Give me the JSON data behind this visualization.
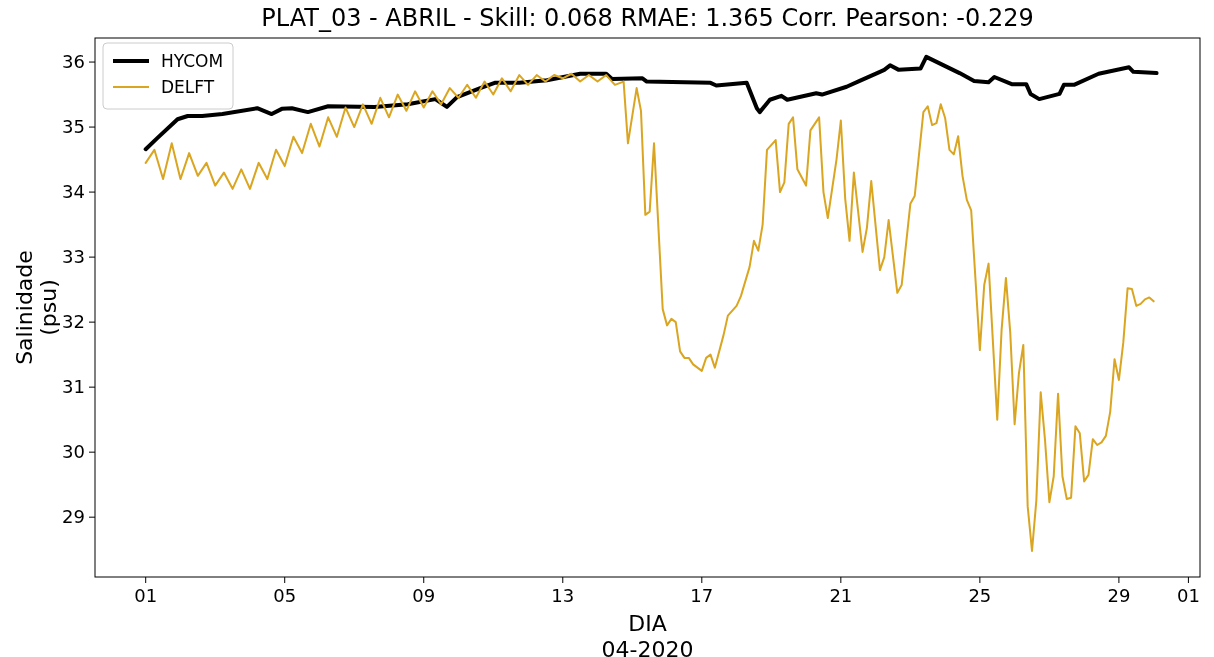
{
  "chart_data": {
    "type": "line",
    "title": "PLAT_03 - ABRIL - Skill: 0.068 RMAE: 1.365 Corr. Pearson: -0.229",
    "xlabel": "DIA\n04-2020",
    "ylabel": "Salinidade\n(psu)",
    "xlim": [
      "2020-03-30T13:00",
      "2020-05-01T08:00"
    ],
    "ylim": [
      28.08,
      36.37
    ],
    "xticks": [
      {
        "value": "2020-04-01",
        "label": "01"
      },
      {
        "value": "2020-04-05",
        "label": "05"
      },
      {
        "value": "2020-04-09",
        "label": "09"
      },
      {
        "value": "2020-04-13",
        "label": "13"
      },
      {
        "value": "2020-04-17",
        "label": "17"
      },
      {
        "value": "2020-04-21",
        "label": "21"
      },
      {
        "value": "2020-04-25",
        "label": "25"
      },
      {
        "value": "2020-04-29",
        "label": "29"
      },
      {
        "value": "2020-05-01",
        "label": "01"
      }
    ],
    "yticks": [
      29,
      30,
      31,
      32,
      33,
      34,
      35,
      36
    ],
    "grid": false,
    "legend": "top left",
    "line_style": "solid",
    "marker": "none",
    "series": [
      {
        "name": "HYCOM",
        "color": "#000000",
        "x": [
          "2020-04-01T00:00",
          "2020-04-01T08:00",
          "2020-04-01T22:00",
          "2020-04-02T05:00",
          "2020-04-02T15:00",
          "2020-04-03T05:00",
          "2020-04-04T05:00",
          "2020-04-04T15:00",
          "2020-04-04T22:00",
          "2020-04-05T05:00",
          "2020-04-05T16:00",
          "2020-04-06T06:00",
          "2020-04-07T14:00",
          "2020-04-08T13:00",
          "2020-04-09T08:00",
          "2020-04-09T16:00",
          "2020-04-09T23:00",
          "2020-04-10T15:00",
          "2020-04-11T01:00",
          "2020-04-11T18:00",
          "2020-04-12T13:00",
          "2020-04-13T12:00",
          "2020-04-14T06:00",
          "2020-04-14T10:00",
          "2020-04-15T07:00",
          "2020-04-15T10:00",
          "2020-04-17T06:00",
          "2020-04-17T10:00",
          "2020-04-18T07:00",
          "2020-04-18T14:00",
          "2020-04-18T16:00",
          "2020-04-18T23:00",
          "2020-04-19T07:00",
          "2020-04-19T11:00",
          "2020-04-20T07:00",
          "2020-04-20T11:00",
          "2020-04-21T04:00",
          "2020-04-21T13:00",
          "2020-04-22T03:00",
          "2020-04-22T06:00",
          "2020-04-22T10:00",
          "2020-04-22T16:00",
          "2020-04-23T07:00",
          "2020-04-23T11:00",
          "2020-04-24T10:00",
          "2020-04-24T20:00",
          "2020-04-25T06:00",
          "2020-04-25T10:00",
          "2020-04-25T22:00",
          "2020-04-26T08:00",
          "2020-04-26T11:00",
          "2020-04-26T17:00",
          "2020-04-27T07:00",
          "2020-04-27T10:00",
          "2020-04-27T17:00",
          "2020-04-28T10:00",
          "2020-04-29T07:00",
          "2020-04-29T10:00",
          "2020-04-30T02:00"
        ],
        "values": [
          34.66,
          34.83,
          35.12,
          35.17,
          35.17,
          35.2,
          35.29,
          35.2,
          35.28,
          35.29,
          35.23,
          35.32,
          35.31,
          35.35,
          35.43,
          35.31,
          35.46,
          35.6,
          35.68,
          35.68,
          35.72,
          35.82,
          35.82,
          35.74,
          35.75,
          35.7,
          35.68,
          35.64,
          35.68,
          35.29,
          35.23,
          35.42,
          35.48,
          35.42,
          35.52,
          35.5,
          35.62,
          35.71,
          35.85,
          35.88,
          35.95,
          35.88,
          35.9,
          36.08,
          35.83,
          35.71,
          35.69,
          35.77,
          35.66,
          35.66,
          35.51,
          35.43,
          35.51,
          35.65,
          35.65,
          35.82,
          35.92,
          35.85,
          35.83
        ]
      },
      {
        "name": "DELFT",
        "color": "#daa520",
        "x": [
          "2020-04-01T00:00",
          "2020-04-01T06:00",
          "2020-04-01T12:00",
          "2020-04-01T18:00",
          "2020-04-02T00:00",
          "2020-04-02T06:00",
          "2020-04-02T12:00",
          "2020-04-02T18:00",
          "2020-04-03T00:00",
          "2020-04-03T06:00",
          "2020-04-03T12:00",
          "2020-04-03T18:00",
          "2020-04-04T00:00",
          "2020-04-04T06:00",
          "2020-04-04T12:00",
          "2020-04-04T18:00",
          "2020-04-05T00:00",
          "2020-04-05T06:00",
          "2020-04-05T12:00",
          "2020-04-05T18:00",
          "2020-04-06T00:00",
          "2020-04-06T06:00",
          "2020-04-06T12:00",
          "2020-04-06T18:00",
          "2020-04-07T00:00",
          "2020-04-07T06:00",
          "2020-04-07T12:00",
          "2020-04-07T18:00",
          "2020-04-08T00:00",
          "2020-04-08T06:00",
          "2020-04-08T12:00",
          "2020-04-08T18:00",
          "2020-04-09T00:00",
          "2020-04-09T06:00",
          "2020-04-09T12:00",
          "2020-04-09T18:00",
          "2020-04-10T00:00",
          "2020-04-10T06:00",
          "2020-04-10T12:00",
          "2020-04-10T18:00",
          "2020-04-11T00:00",
          "2020-04-11T06:00",
          "2020-04-11T12:00",
          "2020-04-11T18:00",
          "2020-04-12T00:00",
          "2020-04-12T06:00",
          "2020-04-12T12:00",
          "2020-04-12T18:00",
          "2020-04-13T00:00",
          "2020-04-13T06:00",
          "2020-04-13T12:00",
          "2020-04-13T18:00",
          "2020-04-14T00:00",
          "2020-04-14T06:00",
          "2020-04-14T12:00",
          "2020-04-14T18:00",
          "2020-04-14T21:00",
          "2020-04-15T03:00",
          "2020-04-15T06:00",
          "2020-04-15T09:00",
          "2020-04-15T12:00",
          "2020-04-15T15:00",
          "2020-04-15T21:00",
          "2020-04-16T00:00",
          "2020-04-16T03:00",
          "2020-04-16T06:00",
          "2020-04-16T09:00",
          "2020-04-16T12:00",
          "2020-04-16T15:00",
          "2020-04-16T18:00",
          "2020-04-17T00:00",
          "2020-04-17T03:00",
          "2020-04-17T06:00",
          "2020-04-17T09:00",
          "2020-04-17T15:00",
          "2020-04-17T18:00",
          "2020-04-18T00:00",
          "2020-04-18T03:00",
          "2020-04-18T09:00",
          "2020-04-18T12:00",
          "2020-04-18T15:00",
          "2020-04-18T18:00",
          "2020-04-18T21:00",
          "2020-04-19T03:00",
          "2020-04-19T06:00",
          "2020-04-19T09:00",
          "2020-04-19T12:00",
          "2020-04-19T15:00",
          "2020-04-19T18:00",
          "2020-04-20T00:00",
          "2020-04-20T03:00",
          "2020-04-20T09:00",
          "2020-04-20T12:00",
          "2020-04-20T15:00",
          "2020-04-20T21:00",
          "2020-04-21T00:00",
          "2020-04-21T03:00",
          "2020-04-21T06:00",
          "2020-04-21T09:00",
          "2020-04-21T15:00",
          "2020-04-21T18:00",
          "2020-04-21T21:00",
          "2020-04-22T03:00",
          "2020-04-22T06:00",
          "2020-04-22T09:00",
          "2020-04-22T15:00",
          "2020-04-22T18:00",
          "2020-04-23T00:00",
          "2020-04-23T03:00",
          "2020-04-23T09:00",
          "2020-04-23T12:00",
          "2020-04-23T15:00",
          "2020-04-23T18:00",
          "2020-04-23T21:00",
          "2020-04-24T00:00",
          "2020-04-24T03:00",
          "2020-04-24T06:00",
          "2020-04-24T09:00",
          "2020-04-24T12:00",
          "2020-04-24T15:00",
          "2020-04-24T18:00",
          "2020-04-25T00:00",
          "2020-04-25T03:00",
          "2020-04-25T06:00",
          "2020-04-25T12:00",
          "2020-04-25T15:00",
          "2020-04-25T18:00",
          "2020-04-25T21:00",
          "2020-04-26T00:00",
          "2020-04-26T03:00",
          "2020-04-26T06:00",
          "2020-04-26T09:00",
          "2020-04-26T12:00",
          "2020-04-26T15:00",
          "2020-04-26T18:00",
          "2020-04-26T21:00",
          "2020-04-27T00:00",
          "2020-04-27T03:00",
          "2020-04-27T06:00",
          "2020-04-27T09:00",
          "2020-04-27T12:00",
          "2020-04-27T15:00",
          "2020-04-27T18:00",
          "2020-04-27T21:00",
          "2020-04-28T00:00",
          "2020-04-28T03:00",
          "2020-04-28T06:00",
          "2020-04-28T09:00",
          "2020-04-28T12:00",
          "2020-04-28T15:00",
          "2020-04-28T18:00",
          "2020-04-28T21:00",
          "2020-04-29T00:00",
          "2020-04-29T03:00",
          "2020-04-29T06:00",
          "2020-04-29T09:00",
          "2020-04-29T12:00",
          "2020-04-29T15:00",
          "2020-04-29T18:00",
          "2020-04-29T21:00",
          "2020-04-30T00:00"
        ],
        "values": [
          34.45,
          34.65,
          34.2,
          34.75,
          34.2,
          34.6,
          34.25,
          34.45,
          34.1,
          34.3,
          34.05,
          34.35,
          34.05,
          34.45,
          34.2,
          34.65,
          34.4,
          34.85,
          34.6,
          35.05,
          34.7,
          35.15,
          34.85,
          35.3,
          35.0,
          35.35,
          35.05,
          35.45,
          35.15,
          35.5,
          35.25,
          35.55,
          35.3,
          35.55,
          35.35,
          35.6,
          35.45,
          35.65,
          35.45,
          35.7,
          35.5,
          35.75,
          35.55,
          35.8,
          35.65,
          35.8,
          35.7,
          35.8,
          35.75,
          35.82,
          35.7,
          35.8,
          35.7,
          35.8,
          35.65,
          35.7,
          34.75,
          35.6,
          35.25,
          33.65,
          33.7,
          34.75,
          32.2,
          31.95,
          32.05,
          32.0,
          31.55,
          31.45,
          31.45,
          31.35,
          31.25,
          31.45,
          31.5,
          31.3,
          31.8,
          32.1,
          32.25,
          32.4,
          32.85,
          33.25,
          33.1,
          33.5,
          34.65,
          34.8,
          34.0,
          34.15,
          35.05,
          35.15,
          34.35,
          34.1,
          34.95,
          35.15,
          34.0,
          33.6,
          34.5,
          35.1,
          33.9,
          33.25,
          34.3,
          33.08,
          33.45,
          34.17,
          32.8,
          33.0,
          33.57,
          32.45,
          32.57,
          33.82,
          33.94,
          35.23,
          35.32,
          35.03,
          35.06,
          35.35,
          35.14,
          34.65,
          34.58,
          34.86,
          34.25,
          33.88,
          33.72,
          31.57,
          32.57,
          32.9,
          30.5,
          31.88,
          32.68,
          31.83,
          30.43,
          31.22,
          31.65,
          29.17,
          28.48,
          29.26,
          30.92,
          30.18,
          29.23,
          29.63,
          30.9,
          29.63,
          29.28,
          29.3,
          30.4,
          30.29,
          29.55,
          29.65,
          30.2,
          30.11,
          30.15,
          30.25,
          30.62,
          31.43,
          31.11,
          31.68,
          32.52,
          32.51,
          32.25,
          32.28,
          32.35,
          32.38,
          32.32
        ]
      }
    ]
  }
}
